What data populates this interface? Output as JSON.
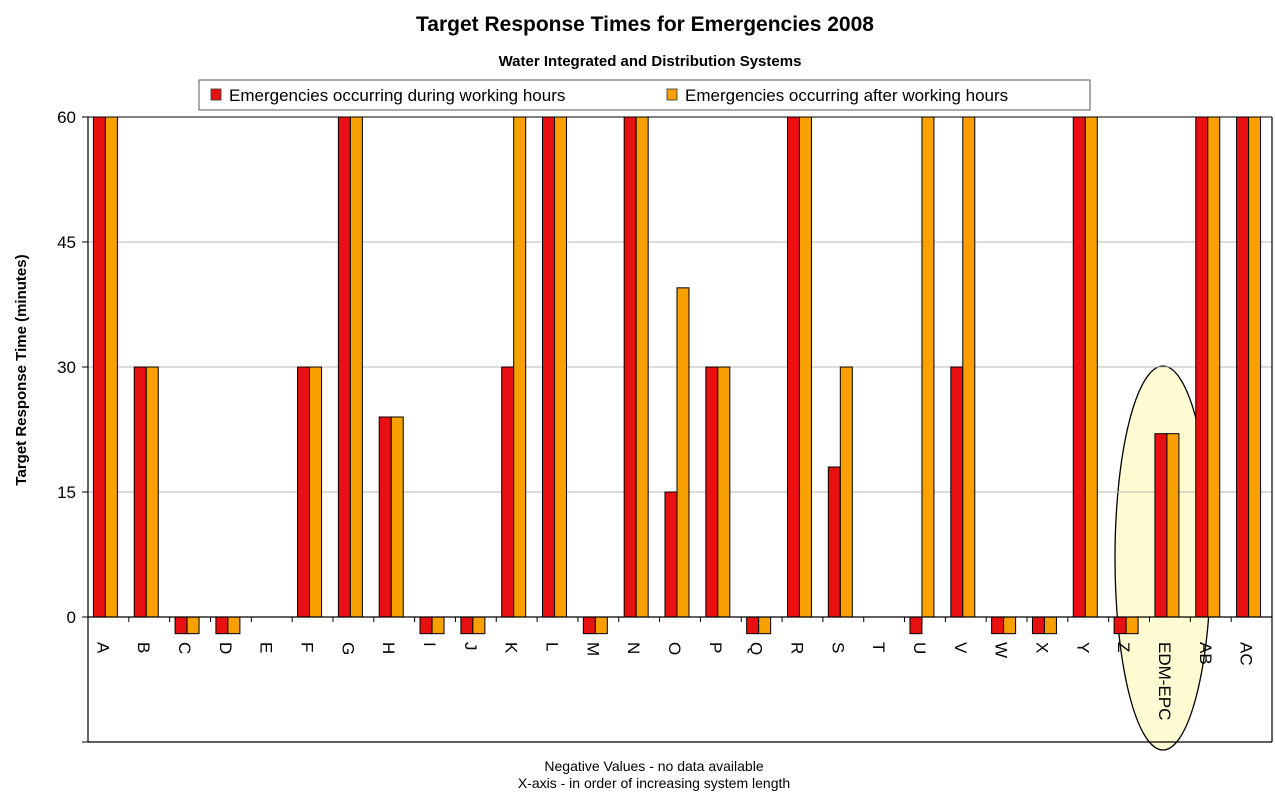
{
  "chart_data": {
    "type": "bar",
    "title": "Target Response Times for Emergencies 2008",
    "subtitle": "Water Integrated and Distribution Systems",
    "ylabel": "Target Response Time (minutes)",
    "xlabel": "",
    "ylim": [
      -15,
      60
    ],
    "yticks": [
      0,
      15,
      30,
      45,
      60
    ],
    "grid": true,
    "legend_position": "top",
    "categories": [
      "A",
      "B",
      "C",
      "D",
      "E",
      "F",
      "G",
      "H",
      "I",
      "J",
      "K",
      "L",
      "M",
      "N",
      "O",
      "P",
      "Q",
      "R",
      "S",
      "T",
      "U",
      "V",
      "W",
      "X",
      "Y",
      "Z",
      "EDM-EPC",
      "AB",
      "AC"
    ],
    "series": [
      {
        "name": "Emergencies occurring during working hours",
        "color": "#e81010",
        "values": [
          60,
          30,
          -2,
          -2,
          0,
          30,
          60,
          24,
          -2,
          -2,
          30,
          60,
          -2,
          60,
          15,
          30,
          -2,
          60,
          18,
          0,
          -2,
          30,
          -2,
          -2,
          60,
          -2,
          22,
          60,
          60
        ]
      },
      {
        "name": "Emergencies occurring after working hours",
        "color": "#f7a000",
        "values": [
          60,
          30,
          -2,
          -2,
          0,
          30,
          60,
          24,
          -2,
          -2,
          60,
          60,
          -2,
          60,
          39.5,
          30,
          -2,
          60,
          30,
          0,
          60,
          60,
          -2,
          -2,
          60,
          -2,
          22,
          60,
          60
        ]
      }
    ],
    "highlight": {
      "categories": [
        "Z",
        "EDM-EPC"
      ],
      "shape": "ellipse",
      "fill": "#fefbd2"
    },
    "footnotes": [
      "Negative Values - no data available",
      "X-axis - in order of increasing system length"
    ]
  }
}
